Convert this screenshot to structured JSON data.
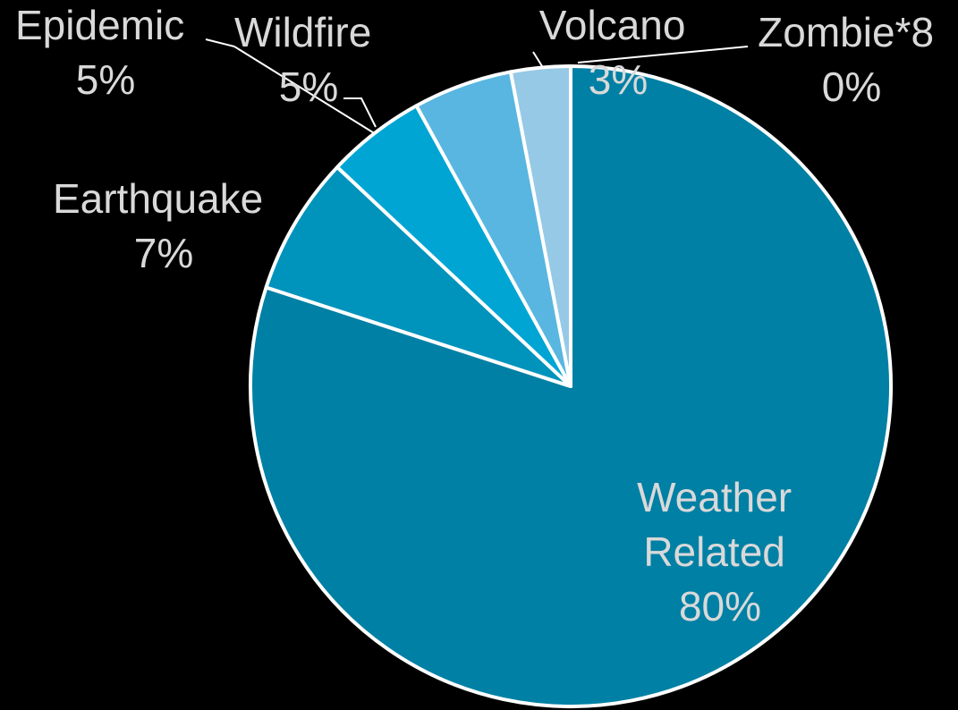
{
  "chart_data": {
    "type": "pie",
    "title": "",
    "slices": [
      {
        "label": "Weather Related",
        "lines": [
          "Weather",
          "Related"
        ],
        "pct": "80%",
        "value": 80,
        "color": "#0080a4"
      },
      {
        "label": "Earthquake",
        "lines": [
          "Earthquake"
        ],
        "pct": "7%",
        "value": 7,
        "color": "#0093bc"
      },
      {
        "label": "Epidemic",
        "lines": [
          "Epidemic"
        ],
        "pct": "5%",
        "value": 5,
        "color": "#00a5d4"
      },
      {
        "label": "Wildfire",
        "lines": [
          "Wildfire"
        ],
        "pct": "5%",
        "value": 5,
        "color": "#59b6e0"
      },
      {
        "label": "Volcano",
        "lines": [
          "Volcano"
        ],
        "pct": "3%",
        "value": 3,
        "color": "#96c9e6"
      },
      {
        "label": "Zombie*8",
        "lines": [
          "Zombie*8"
        ],
        "pct": "0%",
        "value": 0,
        "color": "#b8dcef"
      }
    ],
    "legend": "none",
    "data_labels": "outside-with-leaders"
  }
}
